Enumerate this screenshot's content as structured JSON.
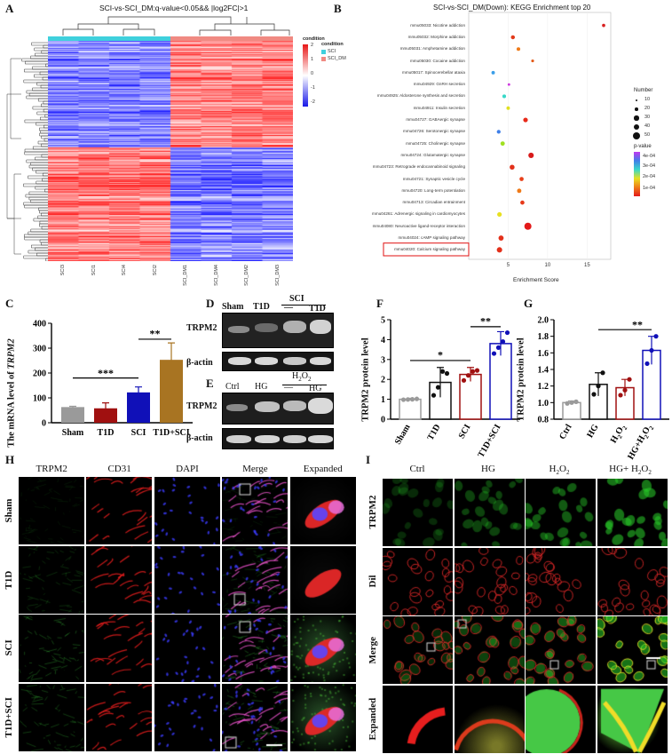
{
  "panels": {
    "A": {
      "letter": "A",
      "title": "SCI-vs-SCI_DM:q-value<0.05&& |log2FC|>1",
      "legend_title": "condition",
      "legend_entries": [
        {
          "label": "SCI",
          "color": "#3fd0dd"
        },
        {
          "label": "SCI_DM",
          "color": "#f08a82"
        }
      ],
      "scale_ticks": [
        "2",
        "1",
        "0",
        "-1",
        "-2"
      ],
      "columns": [
        "SCI3",
        "SCI1",
        "SCI4",
        "SCI2",
        "SCI_DM1",
        "SCI_DM4",
        "SCI_DM2",
        "SCI_DM3"
      ]
    },
    "B": {
      "letter": "B",
      "title": "SCI-vs-SCI_DM(Down): KEGG Enrichment top 20",
      "xlabel": "Enrichment Score",
      "x_ticks": [
        "5",
        "10",
        "15"
      ],
      "size_legend_title": "Number",
      "size_legend": [
        "10",
        "20",
        "30",
        "40",
        "50"
      ],
      "color_legend_title": "p-value",
      "color_legend": [
        "4e-04",
        "3e-04",
        "2e-04",
        "1e-04"
      ],
      "terms": [
        "mmu05033: Nicotine addiction",
        "mmu05032: Morphine addiction",
        "mmu05031: Amphetamine addiction",
        "mmu05030: Cocaine addiction",
        "mmu05017: Spinocerebellar ataxia",
        "mmu04929: GnRH secretion",
        "mmu04925: Aldosterone synthesis and secretion",
        "mmu04911: Insulin secretion",
        "mmu04727: GABAergic synapse",
        "mmu04726: Serotonergic synapse",
        "mmu04725: Cholinergic synapse",
        "mmu04724: Glutamatergic synapse",
        "mmu04723: Retrograde endocannabinoid signaling",
        "mmu04721: Synaptic vesicle cycle",
        "mmu04720: Long-term potentiation",
        "mmu04713: Circadian entrainment",
        "mmu04261: Adrenergic signaling in cardiomyocytes",
        "mmu04080: Neuroactive ligand-receptor interaction",
        "mmu04024: cAMP signaling pathway",
        "mmu04020: Calcium signaling pathway"
      ]
    },
    "C": {
      "letter": "C",
      "ylabel_prefix": "The mRNA level of ",
      "ylabel_gene": "TRPM2",
      "significance": [
        "***",
        "**"
      ]
    },
    "D": {
      "letter": "D",
      "lanes": [
        "Sham",
        "T1D"
      ],
      "group": "SCI",
      "sub_lanes": [
        "—",
        "T1D"
      ],
      "rows": [
        "TRPM2",
        "β-actin"
      ]
    },
    "E": {
      "letter": "E",
      "lanes": [
        "Ctrl",
        "HG"
      ],
      "group": "H2O2",
      "sub_lanes": [
        "—",
        "HG"
      ],
      "rows": [
        "TRPM2",
        "β-actin"
      ]
    },
    "F": {
      "letter": "F",
      "ylabel": "TRPM2 protein level",
      "significance": [
        "*",
        "**"
      ]
    },
    "G": {
      "letter": "G",
      "ylabel": "TRPM2 protein level",
      "significance": [
        "**"
      ]
    },
    "H": {
      "letter": "H",
      "columns": [
        "TRPM2",
        "CD31",
        "DAPI",
        "Merge",
        "Expanded"
      ],
      "rows": [
        "Sham",
        "T1D",
        "SCI",
        "T1D+SCI"
      ]
    },
    "I": {
      "letter": "I",
      "columns": [
        "Ctrl",
        "HG",
        "H2O2",
        "HG+ H2O2"
      ],
      "rows": [
        "TRPM2",
        "Dil",
        "Merge",
        "Expanded"
      ]
    }
  },
  "chart_data": [
    {
      "id": "C",
      "type": "bar",
      "categories": [
        "Sham",
        "T1D",
        "SCI",
        "T1D+SCI"
      ],
      "values": [
        63,
        58,
        122,
        253
      ],
      "errors": [
        3,
        22,
        22,
        68
      ],
      "colors": [
        "#9a9a9a",
        "#a01010",
        "#1010b8",
        "#a87422"
      ],
      "ylim": [
        0,
        400
      ],
      "yticks": [
        0,
        100,
        200,
        300,
        400
      ],
      "xlabel": "",
      "ylabel": "The mRNA level of TRPM2"
    },
    {
      "id": "F",
      "type": "bar",
      "categories": [
        "Sham",
        "T1D",
        "SCI",
        "T1D+SCI"
      ],
      "values": [
        1.0,
        1.85,
        2.25,
        3.8
      ],
      "errors": [
        0.05,
        0.75,
        0.35,
        0.6
      ],
      "points": [
        [
          0.98,
          0.99,
          1.0,
          1.02
        ],
        [
          1.2,
          1.6,
          2.4,
          2.3
        ],
        [
          1.95,
          2.2,
          2.4,
          2.45
        ],
        [
          3.3,
          3.6,
          3.9,
          4.35
        ]
      ],
      "colors": [
        "#9a9a9a",
        "#111111",
        "#a01010",
        "#1010b8"
      ],
      "ylim": [
        0,
        5
      ],
      "yticks": [
        0,
        1,
        2,
        3,
        4,
        5
      ],
      "ylabel": "TRPM2 protein level"
    },
    {
      "id": "G",
      "type": "bar",
      "categories": [
        "Ctrl",
        "HG",
        "H2O2",
        "HG+H2O2"
      ],
      "values": [
        1.0,
        1.22,
        1.18,
        1.63
      ],
      "errors": [
        0.02,
        0.14,
        0.1,
        0.17
      ],
      "points": [
        [
          0.99,
          1.0,
          1.01
        ],
        [
          1.1,
          1.2,
          1.36
        ],
        [
          1.09,
          1.15,
          1.28
        ],
        [
          1.47,
          1.63,
          1.8
        ]
      ],
      "colors": [
        "#9a9a9a",
        "#111111",
        "#a01010",
        "#1010b8"
      ],
      "ylim": [
        0.8,
        2.0
      ],
      "yticks": [
        0.8,
        1.0,
        1.2,
        1.4,
        1.6,
        1.8,
        2.0
      ],
      "ylabel": "TRPM2 protein level"
    },
    {
      "id": "B",
      "type": "scatter",
      "terms_ref": "panels.B.terms",
      "x": [
        17.1,
        5.6,
        6.3,
        8.1,
        3.1,
        5.1,
        4.5,
        5.0,
        7.2,
        3.8,
        4.3,
        7.9,
        5.5,
        6.7,
        6.4,
        6.8,
        3.9,
        7.5,
        4.1,
        3.9
      ],
      "size": [
        8,
        12,
        10,
        6,
        9,
        5,
        10,
        9,
        16,
        11,
        14,
        22,
        18,
        13,
        14,
        13,
        16,
        38,
        20,
        22
      ],
      "pvalue_color": [
        "#d82020",
        "#e23a1a",
        "#ef7a18",
        "#e35a18",
        "#3a9ee8",
        "#cf38e0",
        "#38d8c8",
        "#e0e020",
        "#e82a1a",
        "#3f7fe8",
        "#a0e020",
        "#d81a1a",
        "#e2301a",
        "#e8401a",
        "#ef7a18",
        "#e63a1a",
        "#e8e020",
        "#e31a1a",
        "#e3301a",
        "#e3301a"
      ],
      "xlim": [
        0,
        18
      ],
      "xlabel": "Enrichment Score"
    }
  ]
}
